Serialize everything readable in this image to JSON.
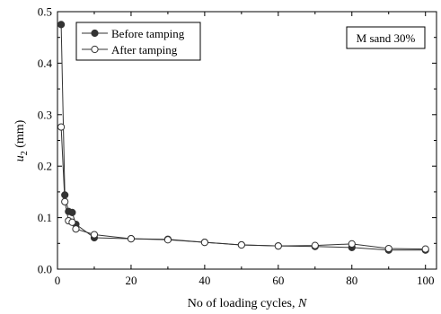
{
  "chart_data": {
    "type": "line",
    "x_label_main": "No of loading cycles, ",
    "x_label_var": "N",
    "y_label_var": "u",
    "y_label_sub": "2",
    "y_label_unit": " (mm)",
    "xlim": [
      0,
      103
    ],
    "ylim": [
      0,
      0.5
    ],
    "x_ticks": [
      "0",
      "20",
      "40",
      "60",
      "80",
      "100"
    ],
    "x_tick_values": [
      0,
      20,
      40,
      60,
      80,
      100
    ],
    "y_ticks": [
      "0.0",
      "0.1",
      "0.2",
      "0.3",
      "0.4",
      "0.5"
    ],
    "y_tick_values": [
      0,
      0.1,
      0.2,
      0.3,
      0.4,
      0.5
    ],
    "annotation": "M sand 30%",
    "legend_position": "top-left",
    "grid": false,
    "series": [
      {
        "name": "Before tamping",
        "marker": "filled-circle",
        "color": "#333333",
        "x": [
          1,
          2,
          3,
          4,
          5,
          10,
          20,
          30,
          40,
          50,
          60,
          70,
          80,
          90,
          100
        ],
        "y": [
          0.475,
          0.144,
          0.112,
          0.11,
          0.087,
          0.061,
          0.059,
          0.058,
          0.052,
          0.047,
          0.045,
          0.044,
          0.042,
          0.037,
          0.037
        ]
      },
      {
        "name": "After tamping",
        "marker": "open-circle",
        "color": "#333333",
        "x": [
          1,
          2,
          3,
          4,
          5,
          10,
          20,
          30,
          40,
          50,
          60,
          70,
          80,
          90,
          100
        ],
        "y": [
          0.276,
          0.131,
          0.094,
          0.091,
          0.078,
          0.067,
          0.059,
          0.057,
          0.052,
          0.047,
          0.045,
          0.046,
          0.049,
          0.04,
          0.039
        ]
      }
    ]
  }
}
